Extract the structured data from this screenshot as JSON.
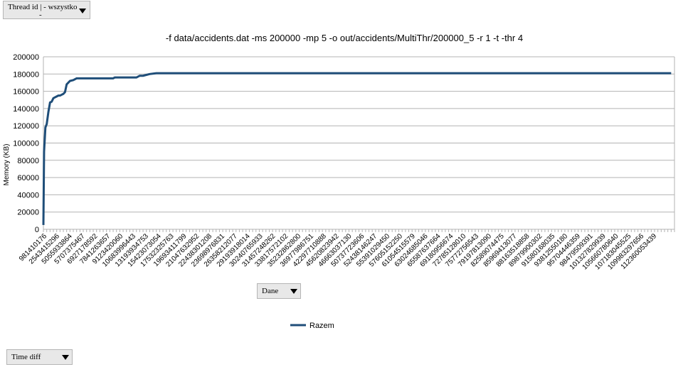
{
  "controls": {
    "thread_filter": {
      "label": "Thread id | - wszystko",
      "sub": "-"
    },
    "data_field": {
      "label": "Dane"
    },
    "row_field": {
      "label": "Time diff"
    }
  },
  "colors": {
    "series": "#1f4e79",
    "grid": "#b3b3b3",
    "axis": "#b3b3b3"
  },
  "chart_data": {
    "type": "line",
    "title": "-f data/accidents.dat -ms 200000 -mp 5 -o out/accidents/MultiThr/200000_5 -r 1 -t -thr 4",
    "ylabel": "Memory (KB)",
    "xlabel": "",
    "ylim": [
      0,
      200000
    ],
    "yticks": [
      0,
      20000,
      40000,
      60000,
      80000,
      100000,
      120000,
      140000,
      160000,
      180000,
      200000
    ],
    "grid": true,
    "legend": "bottom",
    "xtick_labels": [
      "981410176",
      "2543415296",
      "5055933864",
      "5707375467",
      "6927178592",
      "7841263657",
      "9123420060",
      "10683996443",
      "13193934753",
      "15423073054",
      "17532325763",
      "19693411799",
      "21047632952",
      "22438301208",
      "23698976831",
      "26358212077",
      "29193918014",
      "30240765933",
      "31457248262",
      "33817572102",
      "35232862800",
      "36977986751",
      "42297710888",
      "45620823942",
      "46663037130",
      "50737723606",
      "52438146247",
      "55391029450",
      "57605152250",
      "61054515579",
      "63024685046",
      "65587637664",
      "69180956674",
      "72785128010",
      "75772756543",
      "79197813090",
      "82589074475",
      "85969413077",
      "88163518858",
      "89879900302",
      "91580168035",
      "93812550180",
      "95704446359",
      "98479509391",
      "101327829939",
      "105660780640",
      "107183045525",
      "109983297656",
      "112360053439"
    ],
    "series": [
      {
        "name": "Razem",
        "x": [
          0,
          0.2,
          0.6,
          1.0,
          1.5,
          2.0,
          2.5,
          3.0,
          3.5,
          4.0,
          4.5,
          5.0,
          5.5,
          6.0,
          6.5,
          7.0,
          7.5,
          8.0,
          9.0,
          10.0,
          12.0,
          14.0,
          16.0,
          18.0,
          18.5,
          19.0,
          19.5,
          20.0,
          20.5,
          21.0,
          21.5,
          22.0,
          22.5,
          23.0,
          24.0,
          26.0,
          28.0,
          29.0,
          30.0,
          31.0,
          32.0,
          34.0,
          36.0,
          40.0,
          45.0,
          50.0,
          55.0,
          60.0,
          65.0,
          70.0,
          75.0,
          80.0,
          85.0,
          90.0,
          95.0,
          100.0,
          105.0,
          110.0,
          115.0,
          120.0,
          125.0,
          130.0,
          135.0,
          140.0,
          145.0,
          150.0,
          155.0,
          160.0,
          165.0,
          170.0,
          175.0,
          180.0,
          185.0,
          189.0
        ],
        "values": [
          5000,
          90000,
          118000,
          122000,
          136000,
          147000,
          148000,
          152000,
          153000,
          154000,
          155000,
          155000,
          156000,
          157000,
          159000,
          168000,
          170000,
          172000,
          173000,
          175000,
          175000,
          175000,
          175000,
          175000,
          175000,
          175000,
          175000,
          175000,
          175000,
          175000,
          176000,
          176000,
          176000,
          176000,
          176000,
          176000,
          176000,
          178000,
          178000,
          179000,
          180000,
          181000,
          181000,
          181000,
          181000,
          181000,
          181000,
          181000,
          181000,
          181000,
          181000,
          181000,
          181000,
          181000,
          181000,
          181000,
          181000,
          181000,
          181000,
          181000,
          181000,
          181000,
          181000,
          181000,
          181000,
          181000,
          181000,
          181000,
          181000,
          181000,
          181000,
          181000,
          181000,
          181000
        ]
      }
    ]
  }
}
